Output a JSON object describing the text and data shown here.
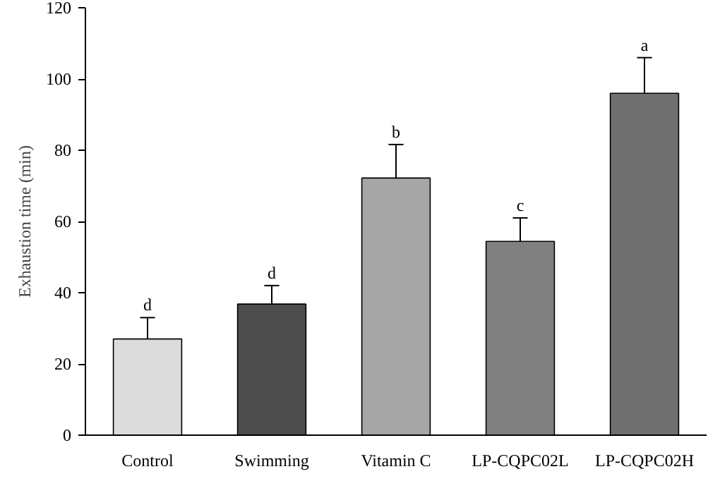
{
  "chart_data": {
    "type": "bar",
    "ylabel": "Exhaustion time (min)",
    "categories": [
      "Control",
      "Swimming",
      "Vitamin C",
      "LP-CQPC02L",
      "LP-CQPC02H"
    ],
    "values": [
      27,
      36.8,
      72.2,
      54.4,
      96
    ],
    "colors": [
      "#dcdcdc",
      "#4d4d4d",
      "#a6a6a6",
      "#808080",
      "#707070"
    ],
    "errors": [
      [
        27,
        33
      ],
      [
        36.8,
        42
      ],
      [
        72.2,
        81.6
      ],
      [
        54.4,
        61
      ],
      [
        96,
        106
      ]
    ],
    "annotations": [
      {
        "text": "d",
        "x": "Control",
        "y": 33
      },
      {
        "text": "d",
        "x": "Swimming",
        "y": 42
      },
      {
        "text": "b",
        "x": "Vitamin C",
        "y": 81.6
      },
      {
        "text": "c",
        "x": "LP-CQPC02L",
        "y": 61
      },
      {
        "text": "a",
        "x": "LP-CQPC02H",
        "y": 106
      }
    ],
    "ylim": [
      0,
      120
    ],
    "yticks": [
      0,
      20,
      40,
      60,
      80,
      100,
      120
    ],
    "grid": false
  }
}
